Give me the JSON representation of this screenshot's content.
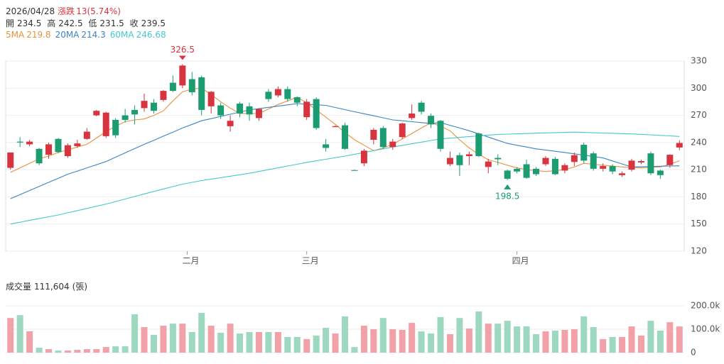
{
  "header": {
    "date": "2026/04/28",
    "change_label": "漲跌",
    "change": "13(5.74%)",
    "ohlc_labels": [
      "開",
      "高",
      "低",
      "收"
    ]
  },
  "chart_data": [
    {
      "type": "candlestick",
      "up_color": "#d7343f",
      "down_color": "#1b9c71",
      "xlim": [
        -0.5,
        70.5
      ],
      "xticks": [
        {
          "value": 18.5,
          "label": "二月"
        },
        {
          "value": 31,
          "label": "三月"
        },
        {
          "value": 53,
          "label": "四月"
        }
      ],
      "ylim": [
        120,
        330
      ],
      "yticks": [
        120,
        150,
        180,
        210,
        240,
        270,
        300,
        330
      ],
      "grid": true,
      "open": [
        212,
        241,
        238,
        233,
        226.5,
        244,
        225,
        236,
        244,
        270,
        247,
        265,
        270,
        276,
        278,
        284,
        287,
        306,
        303,
        310,
        312,
        280,
        281,
        258,
        283,
        280,
        267,
        296,
        292,
        299,
        290,
        268,
        288,
        238,
        257,
        259,
        209.5,
        217,
        243,
        256,
        235,
        246,
        267,
        284,
        269.5,
        264,
        216,
        226,
        225,
        250,
        213,
        223,
        209,
        211,
        216,
        211,
        216,
        222,
        209,
        218.5,
        237.5,
        228,
        211,
        214,
        204,
        210,
        218,
        228,
        209,
        215,
        234.5
      ],
      "high": [
        229,
        246,
        243,
        234,
        240,
        245,
        239,
        243,
        256,
        276,
        274,
        267,
        277,
        281,
        294,
        288,
        298,
        314,
        326.5,
        318,
        314,
        297,
        284,
        270,
        285,
        284,
        278,
        299,
        302,
        302,
        291,
        288,
        290,
        244,
        259,
        262,
        210,
        233,
        256,
        258,
        244,
        262,
        282,
        286,
        272,
        265,
        230,
        229,
        230,
        251,
        222,
        227,
        210,
        213,
        221,
        213,
        225,
        224,
        217,
        229,
        240,
        230,
        217,
        216,
        208,
        222,
        221,
        230,
        210,
        227,
        242.5
      ],
      "low": [
        210,
        235,
        236,
        215,
        222,
        228,
        223,
        234,
        243,
        269,
        245,
        245,
        262,
        260,
        274,
        272,
        285,
        296,
        300,
        292,
        270,
        272,
        266,
        252,
        268,
        264,
        264,
        285,
        290,
        285,
        280,
        265,
        254,
        230,
        257,
        232,
        209,
        214,
        238,
        233,
        232,
        244,
        265,
        271,
        256,
        230,
        214,
        203,
        215,
        224,
        206,
        215,
        198.5,
        206,
        200,
        203,
        214,
        204,
        206,
        214,
        217,
        209,
        208,
        205,
        202,
        208,
        216,
        204,
        200,
        212,
        231.5
      ],
      "close": [
        229,
        240,
        241,
        217,
        238,
        229.5,
        237,
        239,
        252,
        275,
        273,
        248,
        265,
        271,
        286,
        275,
        297,
        297,
        325,
        295.5,
        276,
        296,
        270,
        264,
        272,
        271,
        277,
        288,
        299,
        288,
        284,
        285,
        256,
        234,
        258,
        233,
        209,
        231,
        254,
        235,
        241,
        261,
        272,
        274,
        260,
        233,
        223,
        215,
        227,
        225,
        219,
        221.5,
        200,
        208,
        201,
        205,
        223,
        205,
        215,
        226,
        220,
        211,
        214,
        208,
        206,
        220,
        219.5,
        206,
        204,
        226.5,
        239.5
      ],
      "series": [
        {
          "name": "5MA",
          "color": "#e8923f",
          "values": [
            207,
            212,
            217,
            222,
            225,
            229,
            232,
            235,
            238,
            245,
            252,
            258,
            263,
            265,
            266,
            270,
            275,
            286,
            296,
            299,
            300,
            293,
            285,
            278,
            272,
            272,
            272,
            277,
            282,
            286,
            290,
            284,
            276,
            268,
            260,
            251,
            243,
            237,
            231,
            234,
            238,
            244,
            250,
            256,
            262,
            258,
            253,
            243,
            234,
            227,
            221,
            218,
            215,
            212,
            210,
            209,
            208,
            209,
            210,
            213,
            217,
            216,
            215,
            214,
            213,
            212.5,
            212,
            212.5,
            213,
            216,
            219.8
          ]
        },
        {
          "name": "20MA",
          "color": "#3a84c4",
          "values": [
            178,
            182.5,
            187,
            191.5,
            196,
            200.5,
            205,
            208.5,
            212,
            215.5,
            219,
            223.8,
            228.5,
            233.3,
            238,
            242.5,
            247,
            251.5,
            256,
            260,
            264,
            266.4,
            268.8,
            271.2,
            273.6,
            276,
            277.4,
            278.8,
            280.2,
            281.6,
            283,
            282.3,
            281.7,
            281,
            278.7,
            276.3,
            274,
            271.8,
            269.5,
            267.3,
            265,
            264,
            263,
            262,
            261,
            262,
            259,
            256,
            253,
            249.5,
            246,
            242.5,
            239,
            237,
            235,
            233,
            231.7,
            230.3,
            229,
            227.5,
            226,
            224.5,
            223,
            219.7,
            216.3,
            213,
            213.3,
            213.5,
            213.8,
            214,
            214.3
          ]
        },
        {
          "name": "60MA",
          "color": "#45c9cc",
          "values": [
            150,
            152,
            154,
            156,
            158,
            160,
            162.4,
            164.8,
            167.2,
            169.6,
            172,
            174.8,
            177.6,
            180.4,
            183.2,
            186,
            188.7,
            191.3,
            194,
            196,
            198,
            199.6,
            201.2,
            202.8,
            204.4,
            206,
            208,
            210,
            212,
            214,
            216,
            218,
            219.8,
            221.5,
            223.3,
            225,
            227,
            229,
            231,
            233,
            235,
            236.8,
            238.6,
            240.4,
            242.2,
            244,
            244.8,
            245.7,
            246.5,
            247.3,
            248.2,
            249,
            249.3,
            249.6,
            249.9,
            250.3,
            250.6,
            250.9,
            251.2,
            251.5,
            251.2,
            250.8,
            250.5,
            250.2,
            249.8,
            249.5,
            249,
            248.5,
            247.9,
            247.3,
            246.68
          ]
        }
      ]
    },
    {
      "type": "bar",
      "title": "成交量",
      "last_value": {
        "value": 111604,
        "label": "111,604"
      },
      "unit": "(張)",
      "up_color": "#f1a1a7",
      "down_color": "#9dd8c1",
      "ylim": [
        0,
        200000
      ],
      "yticks": [
        0,
        {
          "value": 100000,
          "label": "100.0k"
        },
        {
          "value": 200000,
          "label": "200.0k"
        }
      ],
      "grid": true,
      "values": [
        148000,
        160000,
        91000,
        21000,
        15000,
        9000,
        9000,
        12000,
        15000,
        15000,
        24000,
        27000,
        27000,
        164000,
        109000,
        76000,
        115000,
        124000,
        124000,
        88000,
        170000,
        115000,
        85000,
        124000,
        82000,
        88000,
        88000,
        88000,
        88000,
        67000,
        67000,
        58000,
        73000,
        106000,
        82000,
        155000,
        24000,
        115000,
        100000,
        148000,
        100000,
        97000,
        127000,
        91000,
        82000,
        152000,
        79000,
        148000,
        103000,
        176000,
        124000,
        124000,
        136000,
        112000,
        112000,
        79000,
        91000,
        94000,
        97000,
        100000,
        155000,
        109000,
        58000,
        67000,
        67000,
        112000,
        73000,
        136000,
        94000,
        130000,
        111604
      ]
    }
  ]
}
